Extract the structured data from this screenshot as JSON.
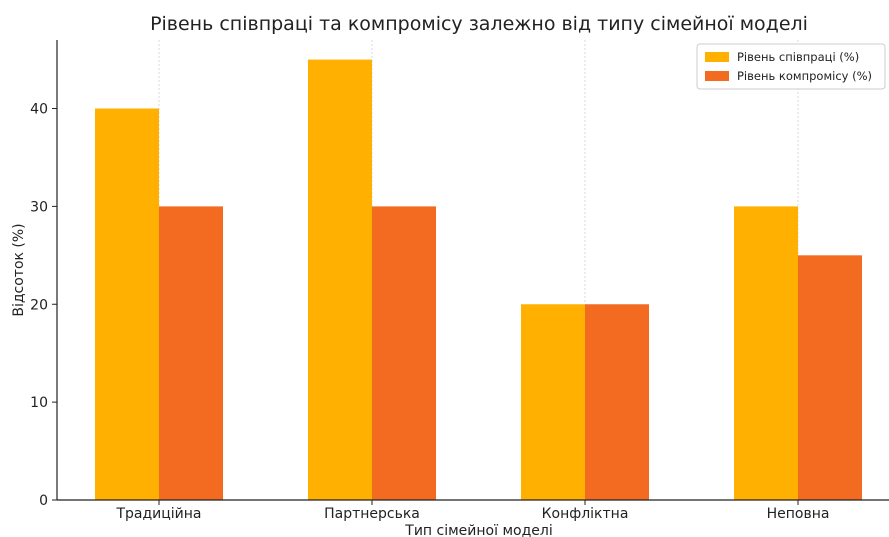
{
  "chart_data": {
    "type": "bar",
    "title": "Рівень співпраці та компромісу залежно від типу сімейної моделі",
    "xlabel": "Тип сімейної моделі",
    "ylabel": "Відсоток (%)",
    "categories": [
      "Традиційна",
      "Партнерська",
      "Конфліктна",
      "Неповна"
    ],
    "series": [
      {
        "name": "Рівень співпраці (%)",
        "values": [
          40,
          45,
          20,
          30
        ],
        "color": "#FFB000"
      },
      {
        "name": "Рівень компромісу (%)",
        "values": [
          30,
          30,
          20,
          25
        ],
        "color": "#F26B21"
      }
    ],
    "ylim": [
      0,
      47
    ],
    "yticks": [
      0,
      10,
      20,
      30,
      40
    ],
    "grid": "x",
    "legend_position": "top-right"
  }
}
